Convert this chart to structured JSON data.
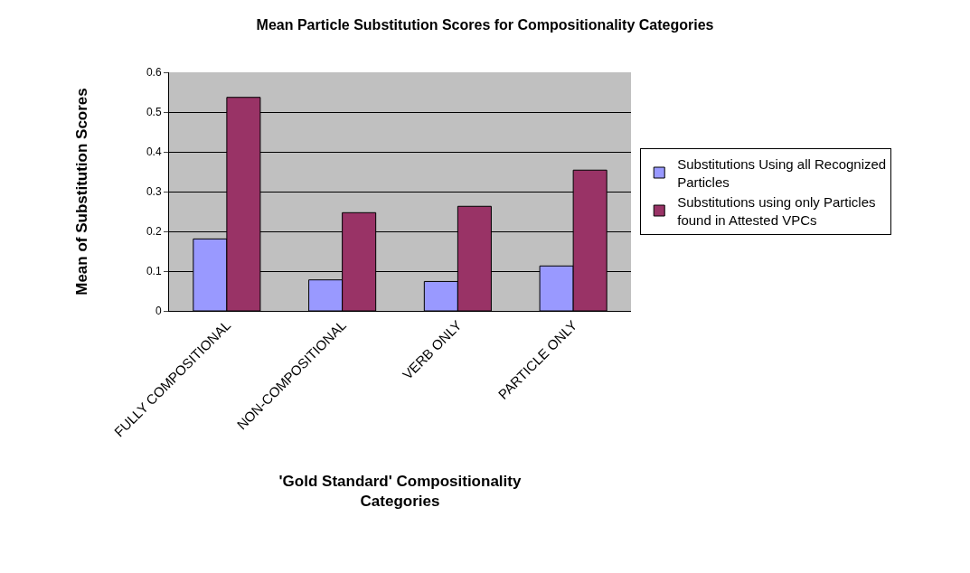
{
  "chart_data": {
    "type": "bar",
    "title": "Mean Particle Substitution Scores for Compositionality Categories",
    "xlabel": "'Gold Standard' Compositionality Categories",
    "ylabel": "Mean of Substitution Scores",
    "categories": [
      "FULLY COMPOSITIONAL",
      "NON-COMPOSITIONAL",
      "VERB ONLY",
      "PARTICLE ONLY"
    ],
    "series": [
      {
        "name": "Substitutions Using all Recognized Particles",
        "color": "#9999ff",
        "values": [
          0.181,
          0.078,
          0.074,
          0.113
        ]
      },
      {
        "name": "Substitutions using only Particles found in Attested VPCs",
        "color": "#993366",
        "values": [
          0.537,
          0.247,
          0.263,
          0.354
        ]
      }
    ],
    "ylim": [
      0,
      0.6
    ],
    "yticks": [
      0,
      0.1,
      0.2,
      0.3,
      0.4,
      0.5,
      0.6
    ],
    "grid": "y",
    "legend": "right"
  }
}
